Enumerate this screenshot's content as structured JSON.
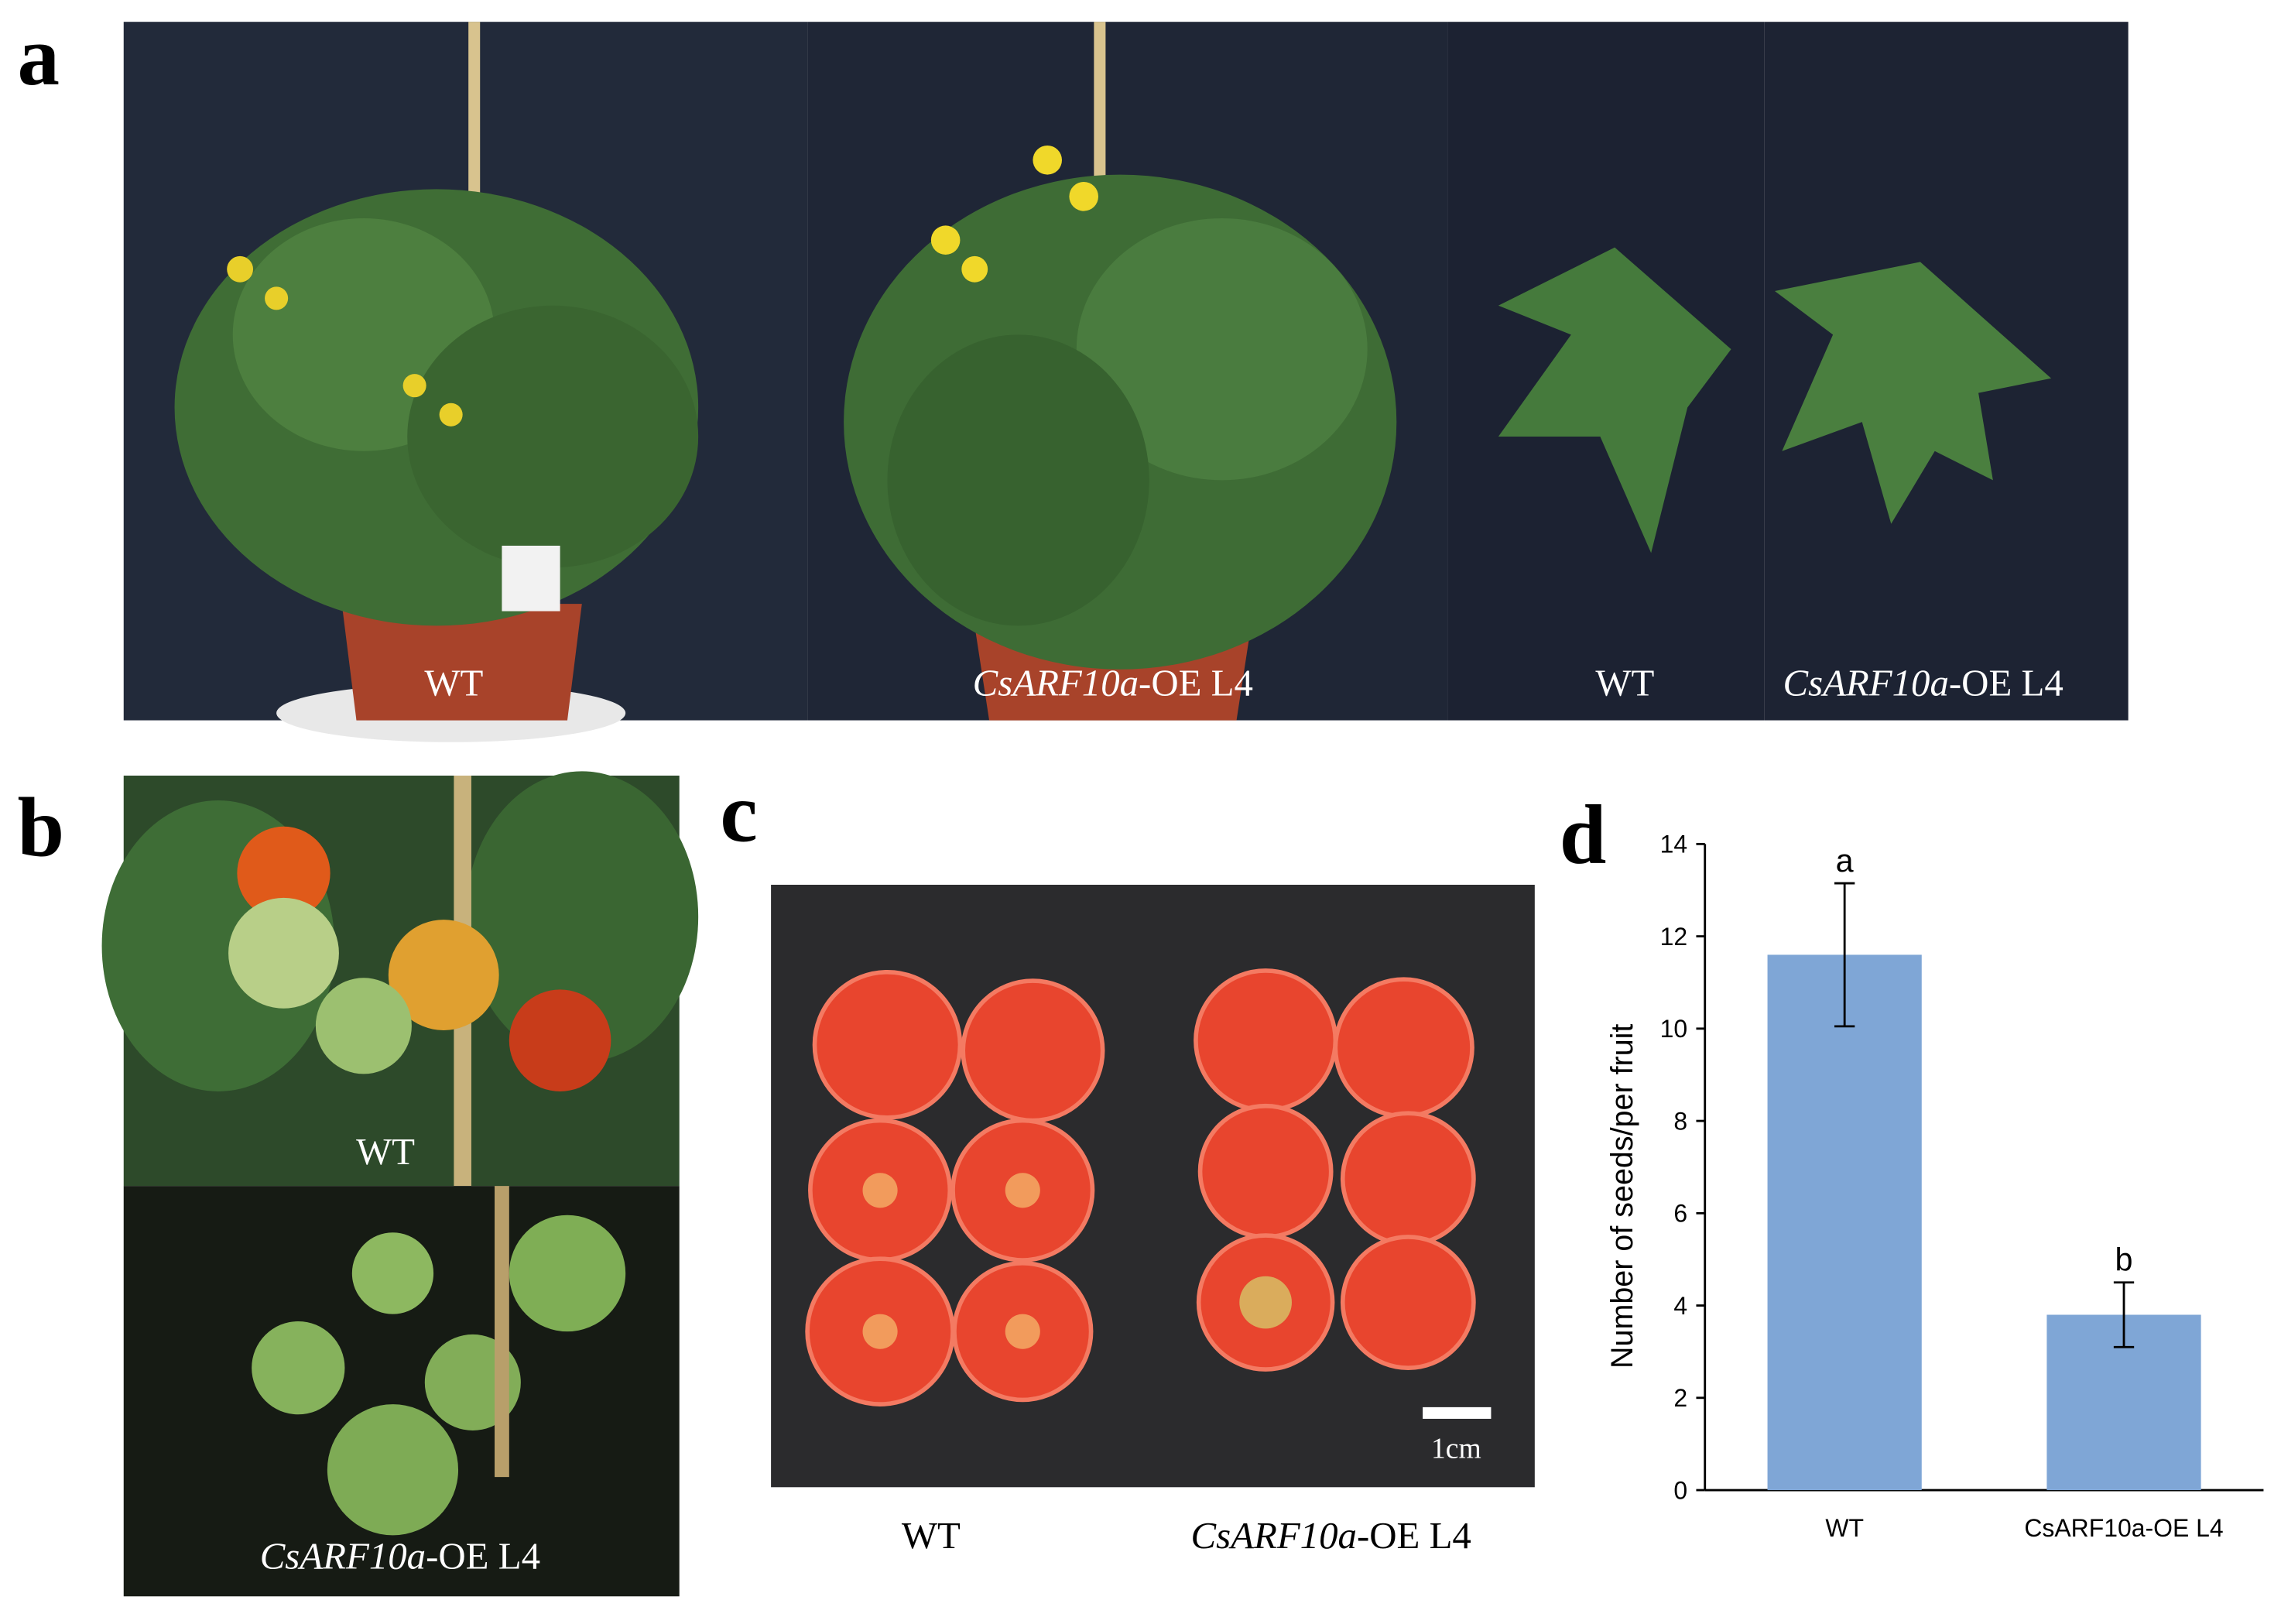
{
  "panel_labels": [
    "a",
    "b",
    "c",
    "d"
  ],
  "panel_a": {
    "captions": [
      {
        "plain": "WT"
      },
      {
        "italic": "CsARF10a",
        "plain": "-OE L4"
      },
      {
        "plain": "WT"
      },
      {
        "italic": "CsARF10a",
        "plain": "-OE L4"
      }
    ]
  },
  "panel_b": {
    "captions": [
      {
        "plain": "WT"
      },
      {
        "italic": "CsARF10a",
        "plain": "-OE L4"
      }
    ]
  },
  "panel_c": {
    "scale_bar": "1cm",
    "captions": [
      {
        "plain": "WT"
      },
      {
        "italic": "CsARF10a",
        "plain": "-OE L4"
      }
    ]
  },
  "chart_data": {
    "type": "bar",
    "ylabel": "Number of seeds/per fruit",
    "categories": [
      "WT",
      "CsARF10a-OE L4"
    ],
    "values": [
      11.6,
      3.8
    ],
    "errors": [
      1.55,
      0.7
    ],
    "annotations": [
      "a",
      "b"
    ],
    "color": "#7fa6d6",
    "ylim": [
      0,
      14
    ],
    "yticks": [
      0,
      2,
      4,
      6,
      8,
      10,
      12,
      14
    ]
  }
}
